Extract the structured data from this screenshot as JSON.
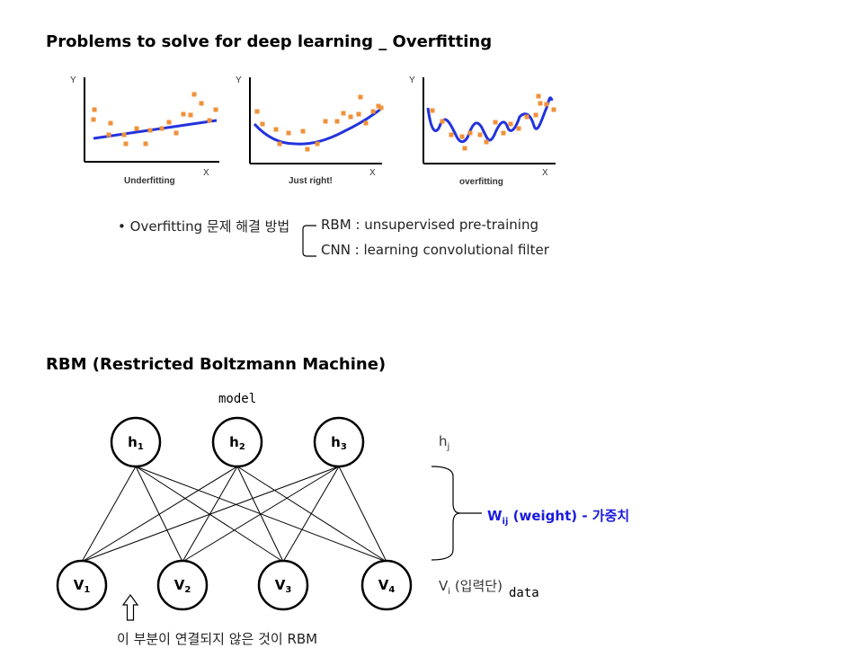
{
  "section1": {
    "title": "Problems to solve for deep learning _ Overfitting",
    "panels": [
      {
        "caption": "Underfitting",
        "y_label": "Y",
        "x_label": "X"
      },
      {
        "caption": "Just right!",
        "y_label": "Y",
        "x_label": "X"
      },
      {
        "caption": "overfitting",
        "y_label": "Y",
        "x_label": "X"
      }
    ],
    "method_intro": "Overfitting 문제 해결 방법",
    "methods": [
      "RBM : unsupervised pre-training",
      "CNN : learning convolutional filter"
    ]
  },
  "section2": {
    "title": "RBM (Restricted Boltzmann Machine)",
    "model_note": "model",
    "hidden_nodes": [
      {
        "base": "h",
        "sub": "1"
      },
      {
        "base": "h",
        "sub": "2"
      },
      {
        "base": "h",
        "sub": "3"
      }
    ],
    "visible_nodes": [
      {
        "base": "V",
        "sub": "1"
      },
      {
        "base": "V",
        "sub": "2"
      },
      {
        "base": "V",
        "sub": "3"
      },
      {
        "base": "V",
        "sub": "4"
      }
    ],
    "hidden_label": {
      "base": "h",
      "sub": "j"
    },
    "weight_label": {
      "base": "W",
      "sub": "ij",
      "rest": " (weight) - 가중치"
    },
    "visible_label": {
      "base": "V",
      "sub": "i",
      "rest": " (입력단)"
    },
    "data_note": "data",
    "bottom_note": "이 부분이 연결되지 않은 것이 RBM",
    "colors": {
      "point": "#f0913a",
      "curve": "#2233dd",
      "weight_text": "#1a1adf"
    }
  }
}
